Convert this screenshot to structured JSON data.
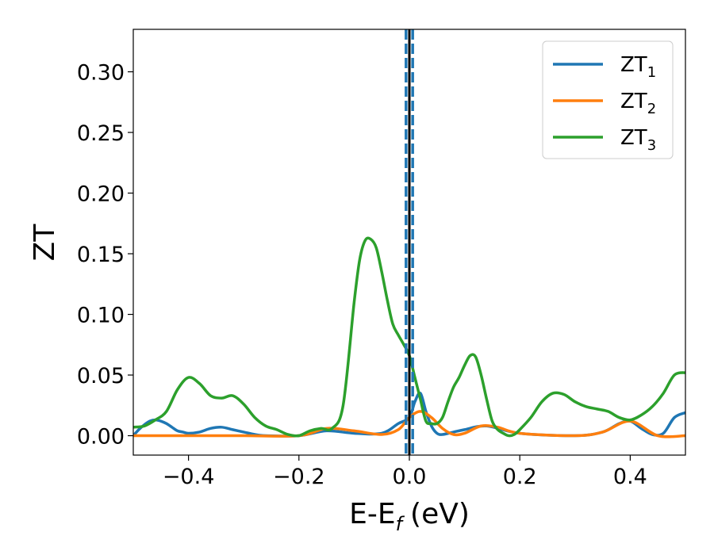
{
  "chart_data": {
    "type": "line",
    "xlabel": "E-E",
    "xlabel_sub": "f",
    "xlabel_unit": "(eV)",
    "ylabel": "ZT",
    "xlim": [
      -0.5,
      0.5
    ],
    "ylim": [
      -0.016,
      0.335
    ],
    "x_ticks": [
      -0.4,
      -0.2,
      0.0,
      0.2,
      0.4
    ],
    "x_tick_labels": [
      "−0.4",
      "−0.2",
      "0.0",
      "0.2",
      "0.4"
    ],
    "y_ticks": [
      0.0,
      0.05,
      0.1,
      0.15,
      0.2,
      0.25,
      0.3
    ],
    "y_tick_labels": [
      "0.00",
      "0.05",
      "0.10",
      "0.15",
      "0.20",
      "0.25",
      "0.30"
    ],
    "grid": false,
    "legend_position": "top-right",
    "vertical_lines": [
      {
        "x": 0.0,
        "style": "solid",
        "color": "#000000"
      },
      {
        "x": -0.006,
        "style": "dashed",
        "color": "#1f77b4"
      },
      {
        "x": 0.006,
        "style": "dashed",
        "color": "#1f77b4"
      }
    ],
    "series": [
      {
        "name": "ZT",
        "sub": "1",
        "color": "#1f77b4",
        "x": [
          -0.5,
          -0.49,
          -0.48,
          -0.47,
          -0.46,
          -0.45,
          -0.44,
          -0.43,
          -0.42,
          -0.41,
          -0.4,
          -0.38,
          -0.36,
          -0.34,
          -0.32,
          -0.3,
          -0.28,
          -0.26,
          -0.2,
          -0.15,
          -0.1,
          -0.05,
          -0.02,
          0.0,
          0.01,
          0.02,
          0.03,
          0.04,
          0.05,
          0.06,
          0.08,
          0.1,
          0.14,
          0.2,
          0.3,
          0.35,
          0.38,
          0.4,
          0.42,
          0.44,
          0.46,
          0.48,
          0.5
        ],
        "y": [
          0.0,
          0.005,
          0.009,
          0.012,
          0.013,
          0.012,
          0.01,
          0.007,
          0.004,
          0.003,
          0.002,
          0.003,
          0.006,
          0.007,
          0.005,
          0.003,
          0.001,
          0.0,
          0.0,
          0.004,
          0.002,
          0.002,
          0.01,
          0.015,
          0.028,
          0.035,
          0.02,
          0.008,
          0.002,
          0.001,
          0.003,
          0.005,
          0.008,
          0.002,
          0.0,
          0.003,
          0.01,
          0.012,
          0.006,
          0.001,
          0.002,
          0.015,
          0.019
        ]
      },
      {
        "name": "ZT",
        "sub": "2",
        "color": "#ff7f0e",
        "x": [
          -0.5,
          -0.45,
          -0.4,
          -0.3,
          -0.2,
          -0.15,
          -0.1,
          -0.05,
          -0.02,
          0.0,
          0.02,
          0.04,
          0.06,
          0.08,
          0.1,
          0.13,
          0.16,
          0.2,
          0.3,
          0.35,
          0.4,
          0.45,
          0.5
        ],
        "y": [
          0.0,
          0.0,
          0.0,
          0.0,
          0.0,
          0.006,
          0.004,
          0.001,
          0.005,
          0.015,
          0.02,
          0.015,
          0.006,
          0.001,
          0.002,
          0.008,
          0.007,
          0.002,
          0.0,
          0.003,
          0.012,
          0.0,
          0.0
        ]
      },
      {
        "name": "ZT",
        "sub": "3",
        "color": "#2ca02c",
        "x": [
          -0.5,
          -0.48,
          -0.46,
          -0.44,
          -0.42,
          -0.4,
          -0.38,
          -0.36,
          -0.34,
          -0.32,
          -0.3,
          -0.28,
          -0.26,
          -0.24,
          -0.22,
          -0.2,
          -0.18,
          -0.16,
          -0.14,
          -0.12,
          -0.1,
          -0.09,
          -0.08,
          -0.07,
          -0.06,
          -0.05,
          -0.04,
          -0.03,
          -0.02,
          -0.01,
          0.0,
          0.01,
          0.02,
          0.03,
          0.04,
          0.05,
          0.06,
          0.07,
          0.08,
          0.09,
          0.1,
          0.11,
          0.12,
          0.13,
          0.14,
          0.15,
          0.16,
          0.17,
          0.18,
          0.19,
          0.2,
          0.22,
          0.24,
          0.26,
          0.28,
          0.3,
          0.32,
          0.34,
          0.36,
          0.38,
          0.4,
          0.42,
          0.44,
          0.46,
          0.48,
          0.5
        ],
        "y": [
          0.007,
          0.008,
          0.013,
          0.02,
          0.038,
          0.048,
          0.043,
          0.033,
          0.031,
          0.033,
          0.026,
          0.015,
          0.008,
          0.005,
          0.001,
          0.0,
          0.004,
          0.006,
          0.006,
          0.025,
          0.11,
          0.145,
          0.161,
          0.162,
          0.155,
          0.135,
          0.112,
          0.092,
          0.083,
          0.075,
          0.066,
          0.048,
          0.03,
          0.012,
          0.01,
          0.01,
          0.015,
          0.028,
          0.04,
          0.048,
          0.058,
          0.066,
          0.065,
          0.05,
          0.03,
          0.012,
          0.005,
          0.002,
          0.0,
          0.001,
          0.005,
          0.015,
          0.028,
          0.035,
          0.034,
          0.028,
          0.024,
          0.022,
          0.02,
          0.015,
          0.013,
          0.017,
          0.024,
          0.035,
          0.05,
          0.052
        ]
      }
    ]
  }
}
